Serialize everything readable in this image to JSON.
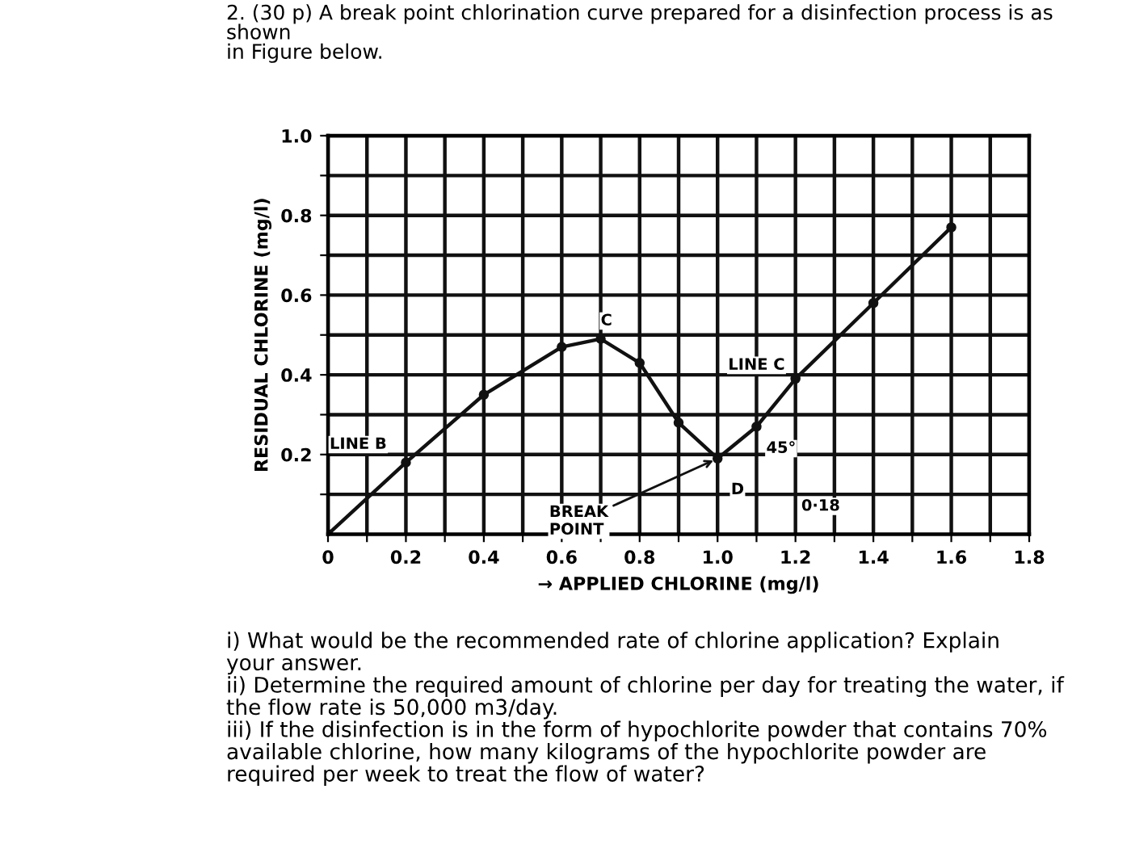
{
  "chart_data": {
    "type": "line",
    "title": "2. (30 p) A break point chlorination curve prepared for a disinfection process is as\nshown\nin Figure below.",
    "xlabel": "→ APPLIED CHLORINE (mg/l)",
    "ylabel": "RESIDUAL CHLORINE (mg/l)",
    "x": [
      0,
      0.2,
      0.4,
      0.6,
      0.7,
      0.8,
      0.9,
      1.0,
      1.1,
      1.2,
      1.4,
      1.6
    ],
    "series": [
      {
        "color": "#111111",
        "values": [
          0,
          0.18,
          0.35,
          0.47,
          0.49,
          0.43,
          0.28,
          0.19,
          0.27,
          0.39,
          0.58,
          0.77
        ]
      }
    ],
    "marker": "circle",
    "line_style": "solid",
    "grid": true,
    "legend": false,
    "xlim": [
      0,
      1.8
    ],
    "ylim": [
      0,
      1.0
    ],
    "xticks": [
      0,
      {
        "value": 0.1,
        "label": null
      },
      0.2,
      {
        "value": 0.3,
        "label": null
      },
      0.4,
      {
        "value": 0.5,
        "label": null
      },
      0.6,
      {
        "value": 0.7,
        "label": null
      },
      0.8,
      {
        "value": 0.9,
        "label": null
      },
      {
        "value": 1.0,
        "label": "1.0"
      },
      {
        "value": 1.1,
        "label": null
      },
      1.2,
      {
        "value": 1.3,
        "label": null
      },
      1.4,
      {
        "value": 1.5,
        "label": null
      },
      1.6,
      {
        "value": 1.7,
        "label": null
      },
      1.8
    ],
    "yticks": [
      {
        "value": 0.1,
        "label": null
      },
      0.2,
      {
        "value": 0.3,
        "label": null
      },
      0.4,
      {
        "value": 0.5,
        "label": null
      },
      0.6,
      {
        "value": 0.7,
        "label": null
      },
      0.8,
      {
        "value": 0.9,
        "label": null
      },
      {
        "value": 1.0,
        "label": "1.0"
      }
    ],
    "annotations": [
      {
        "text": "LINE B",
        "x": 0.2,
        "y": 0.18
      },
      {
        "text": "C",
        "x": 0.7,
        "y": 0.49
      },
      {
        "text": "LINE C",
        "x": 1.2,
        "y": 0.39
      },
      {
        "text": "BREAK\nPOINT",
        "x": 1.0,
        "y": 0.19
      },
      {
        "text": "D",
        "x": 1.0,
        "y": 0.19
      },
      "45°",
      "0·18",
      "i) What would be the recommended rate of chlorine application? Explain\nyour answer.\nii) Determine the required amount of chlorine per day for treating the water, if\nthe flow rate is 50,000 m3/day.\niii) If the disinfection is in the form of hypochlorite powder that contains 70%\navailable chlorine, how many kilograms of the hypochlorite powder are\nrequired per week to treat the flow of water?"
    ]
  }
}
